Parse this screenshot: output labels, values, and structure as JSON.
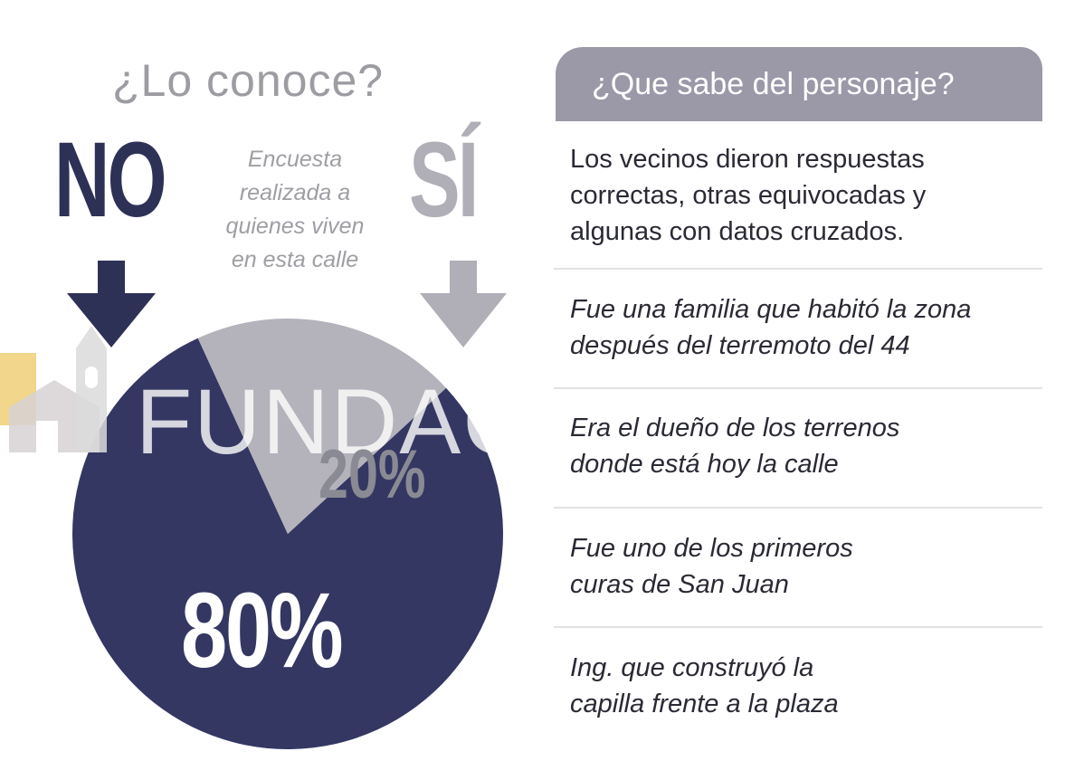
{
  "left": {
    "title": "¿Lo conoce?",
    "no_label": "NO",
    "si_label": "SÍ",
    "survey_note": [
      "Encuesta",
      "realizada a",
      "quienes viven",
      "en esta calle"
    ]
  },
  "watermark": "FUNDAC",
  "chart_data": {
    "type": "pie",
    "title": "¿Lo conoce?",
    "slices": [
      {
        "label": "NO",
        "value": 80,
        "text": "80%",
        "color": "#343762"
      },
      {
        "label": "SÍ",
        "value": 20,
        "text": "20%",
        "color": "#b4b2bb"
      }
    ]
  },
  "right": {
    "header": "¿Que sabe del personaje?",
    "answers": [
      {
        "lines": [
          "Los vecinos dieron respuestas",
          "correctas, otras equivocadas y",
          "algunas con datos cruzados."
        ]
      },
      {
        "lines": [
          "Fue una familia que habitó la zona",
          "después del terremoto del 44"
        ]
      },
      {
        "lines": [
          "Era el dueño de los terrenos",
          "donde está hoy la calle"
        ]
      },
      {
        "lines": [
          "Fue uno de los primeros",
          "curas de San Juan"
        ]
      },
      {
        "lines": [
          "Ing. que construyó la",
          "capilla frente a la plaza"
        ]
      }
    ]
  }
}
